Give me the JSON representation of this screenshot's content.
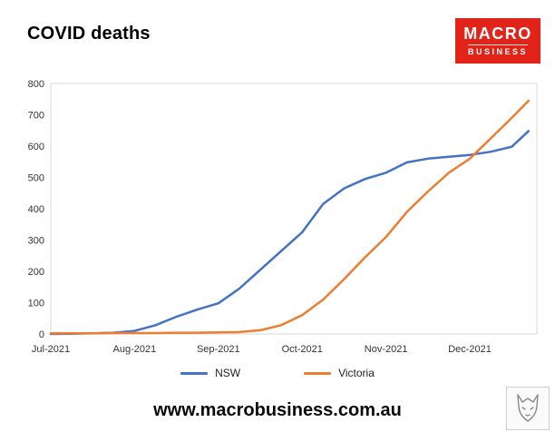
{
  "header": {
    "title": "COVID deaths",
    "logo": {
      "line1": "MACRO",
      "line2": "BUSINESS",
      "bg_color": "#e2231a",
      "text_color": "#ffffff"
    }
  },
  "footer": {
    "url": "www.macrobusiness.com.au"
  },
  "chart_data": {
    "type": "line",
    "title": "COVID deaths",
    "xlabel": "",
    "ylabel": "",
    "grid": false,
    "legend_position": "bottom",
    "xlim": [
      0,
      5.8
    ],
    "ylim": [
      0,
      800
    ],
    "yticks": [
      0,
      100,
      200,
      300,
      400,
      500,
      600,
      700,
      800
    ],
    "xtick_positions": [
      0,
      1,
      2,
      3,
      4,
      5
    ],
    "xtick_labels": [
      "Jul-2021",
      "Aug-2021",
      "Sep-2021",
      "Oct-2021",
      "Nov-2021",
      "Dec-2021"
    ],
    "x": [
      0,
      0.25,
      0.5,
      0.75,
      1,
      1.25,
      1.5,
      1.75,
      2,
      2.25,
      2.5,
      2.75,
      3,
      3.25,
      3.5,
      3.75,
      4,
      4.25,
      4.5,
      4.75,
      5,
      5.25,
      5.5,
      5.7
    ],
    "series": [
      {
        "name": "NSW",
        "color": "#4472C4",
        "values": [
          0,
          1,
          2,
          4,
          10,
          28,
          55,
          78,
          98,
          145,
          205,
          265,
          325,
          415,
          465,
          495,
          515,
          548,
          560,
          566,
          572,
          582,
          598,
          648
        ]
      },
      {
        "name": "Victoria",
        "color": "#ED7D31",
        "values": [
          2,
          2,
          2,
          3,
          3,
          3,
          4,
          4,
          5,
          6,
          12,
          28,
          60,
          110,
          175,
          245,
          310,
          390,
          455,
          515,
          560,
          625,
          690,
          745
        ]
      }
    ],
    "plot_border_color": "#d9d9d9",
    "tick_label_color": "#333333"
  }
}
